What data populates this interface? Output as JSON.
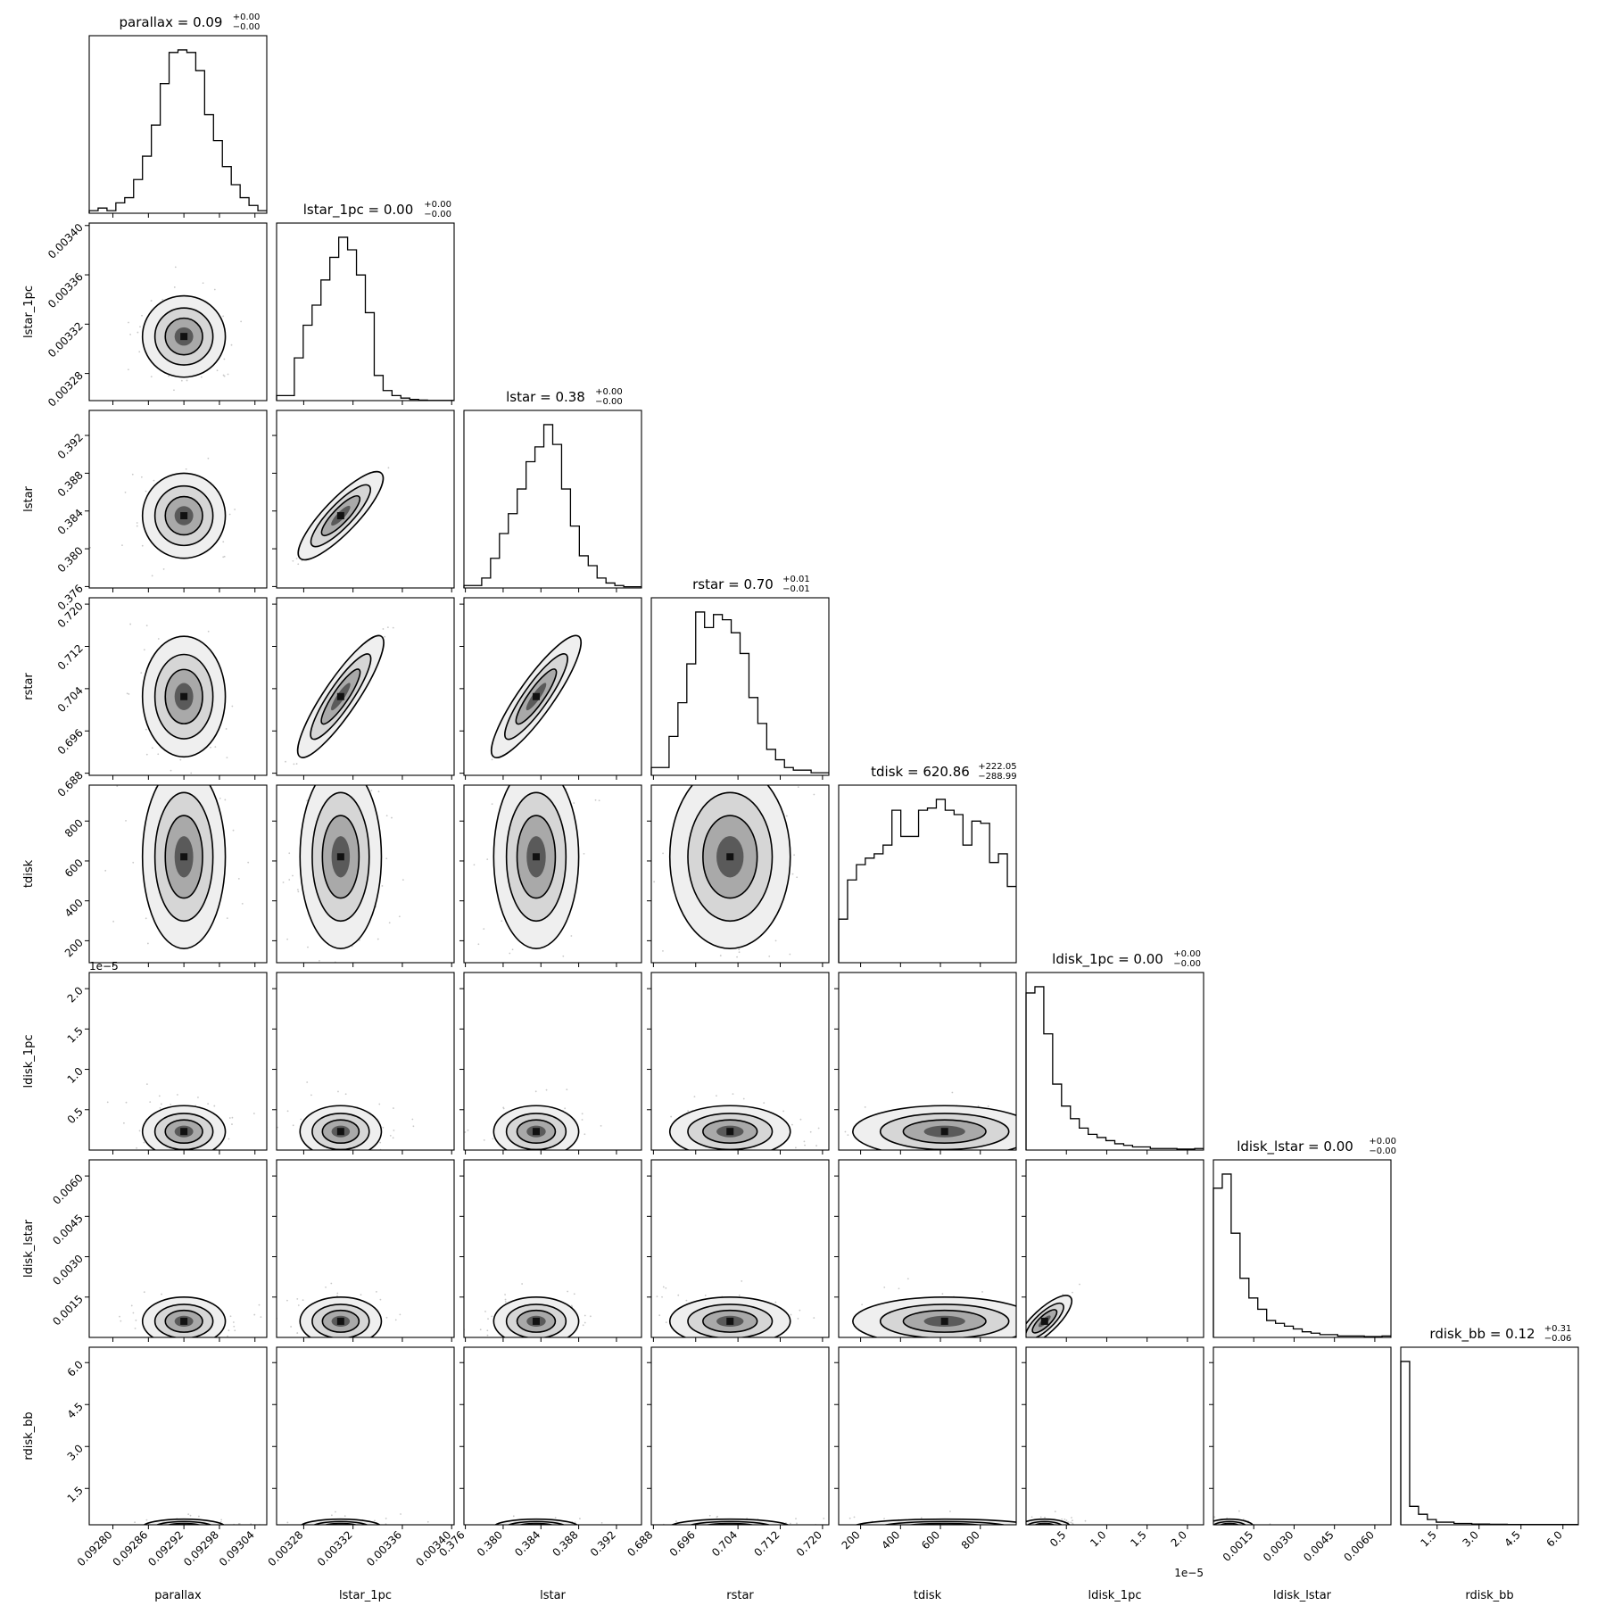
{
  "chart_data": {
    "type": "corner",
    "params": [
      "parallax",
      "lstar_1pc",
      "lstar",
      "rstar",
      "tdisk",
      "ldisk_1pc",
      "ldisk_lstar",
      "rdisk_bb"
    ],
    "axis_labels": [
      "parallax",
      "lstar_1pc",
      "lstar",
      "rstar",
      "tdisk",
      "ldisk_1pc",
      "ldisk_lstar",
      "rdisk_bb"
    ],
    "titles": [
      {
        "main": "parallax = 0.09",
        "sup": "+0.00",
        "sub": "−0.00"
      },
      {
        "main": "lstar_1pc = 0.00",
        "sup": "+0.00",
        "sub": "−0.00"
      },
      {
        "main": "lstar = 0.38",
        "sup": "+0.00",
        "sub": "−0.00"
      },
      {
        "main": "rstar = 0.70",
        "sup": "+0.01",
        "sub": "−0.01"
      },
      {
        "main": "tdisk = 620.86",
        "sup": "+222.05",
        "sub": "−288.99"
      },
      {
        "main": "ldisk_1pc = 0.00",
        "sup": "+0.00",
        "sub": "−0.00"
      },
      {
        "main": "ldisk_lstar = 0.00",
        "sup": "+0.00",
        "sub": "−0.00"
      },
      {
        "main": "rdisk_bb = 0.12",
        "sup": "+0.31",
        "sub": "−0.06"
      }
    ],
    "ranges": [
      [
        0.09276,
        0.09306
      ],
      [
        0.003258,
        0.003402
      ],
      [
        0.37585,
        0.39465
      ],
      [
        0.6876,
        0.7212
      ],
      [
        90,
        980
      ],
      [
        0.0,
        2.2e-05
      ],
      [
        0.0,
        0.0066
      ],
      [
        0.2,
        6.55
      ]
    ],
    "tick_values": [
      [
        0.0928,
        0.09286,
        0.09292,
        0.09298,
        0.09304
      ],
      [
        0.00328,
        0.00332,
        0.00336,
        0.0034
      ],
      [
        0.376,
        0.38,
        0.384,
        0.388,
        0.392
      ],
      [
        0.688,
        0.696,
        0.704,
        0.712,
        0.72
      ],
      [
        200,
        400,
        600,
        800
      ],
      [
        5e-06,
        1e-05,
        1.5e-05,
        2e-05
      ],
      [
        0.0015,
        0.003,
        0.0045,
        0.006
      ],
      [
        1.5,
        3.0,
        4.5,
        6.0
      ]
    ],
    "tick_labels_x": [
      [
        "0.09280",
        "0.09286",
        "0.09292",
        "0.09298",
        "0.09304"
      ],
      [
        "0.00328",
        "0.00332",
        "0.00336",
        "0.00340"
      ],
      [
        "0.376",
        "0.380",
        "0.384",
        "0.388",
        "0.392"
      ],
      [
        "0.688",
        "0.696",
        "0.704",
        "0.712",
        "0.720"
      ],
      [
        "200",
        "400",
        "600",
        "800"
      ],
      [
        "0.5",
        "1.0",
        "1.5",
        "2.0"
      ],
      [
        "0.0015",
        "0.0030",
        "0.0045",
        "0.0060"
      ],
      [
        "1.5",
        "3.0",
        "4.5",
        "6.0"
      ]
    ],
    "tick_labels_y": [
      [],
      [
        "0.00328",
        "0.00332",
        "0.00336",
        "0.00340"
      ],
      [
        "0.376",
        "0.380",
        "0.384",
        "0.388",
        "0.392"
      ],
      [
        "0.688",
        "0.696",
        "0.704",
        "0.712",
        "0.720"
      ],
      [
        "200",
        "400",
        "600",
        "800"
      ],
      [
        "0.5",
        "1.0",
        "1.5",
        "2.0"
      ],
      [
        "0.0015",
        "0.0030",
        "0.0045",
        "0.0060"
      ],
      [
        "1.5",
        "3.0",
        "4.5",
        "6.0"
      ]
    ],
    "offset_text": {
      "ldisk_1pc": "1e−5"
    },
    "histograms": [
      [
        1,
        2,
        1,
        4,
        6,
        13,
        22,
        34,
        50,
        62,
        63,
        62,
        55,
        38,
        28,
        18,
        11,
        6,
        3,
        1
      ],
      [
        2,
        2,
        17,
        30,
        38,
        48,
        57,
        65,
        60,
        50,
        35,
        10,
        4,
        2,
        1,
        0.5,
        0.2,
        0.1,
        0.1,
        0.1
      ],
      [
        1,
        1,
        4,
        12,
        22,
        30,
        40,
        51,
        57,
        66,
        58,
        40,
        25,
        13,
        9,
        4,
        2,
        1,
        0.5,
        0.5
      ],
      [
        3,
        3,
        15,
        28,
        43,
        63,
        57,
        62,
        60,
        55,
        47,
        30,
        20,
        10,
        6,
        3,
        2,
        2,
        1,
        1
      ],
      [
        20,
        38,
        45,
        48,
        50,
        54,
        70,
        58,
        58,
        70,
        71,
        75,
        70,
        68,
        54,
        65,
        64,
        46,
        50,
        35
      ],
      [
        50,
        52,
        37,
        21,
        14,
        10,
        7,
        5,
        4,
        3,
        2,
        1.5,
        1,
        1,
        0.5,
        0.5,
        0.5,
        0.3,
        0.3,
        0.5
      ],
      [
        53,
        58,
        37,
        21,
        14,
        10,
        6,
        5,
        4,
        3,
        2,
        1.5,
        1,
        1,
        0.5,
        0.5,
        0.5,
        0.3,
        0.3,
        0.5
      ],
      [
        62,
        7,
        4,
        2,
        1,
        1,
        0.5,
        0.5,
        0.3,
        0.3,
        0.2,
        0.2,
        0.1,
        0.1,
        0.1,
        0.1,
        0.1,
        0.1,
        0.1,
        0.1
      ]
    ],
    "medians": [
      0.09292,
      0.00331,
      0.3835,
      0.7025,
      620.86,
      2.3e-06,
      0.0006,
      0.12
    ],
    "sigmas": [
      3.5e-05,
      1.65e-05,
      0.00225,
      0.0057,
      230,
      1.6e-06,
      0.00045,
      0.14
    ]
  }
}
